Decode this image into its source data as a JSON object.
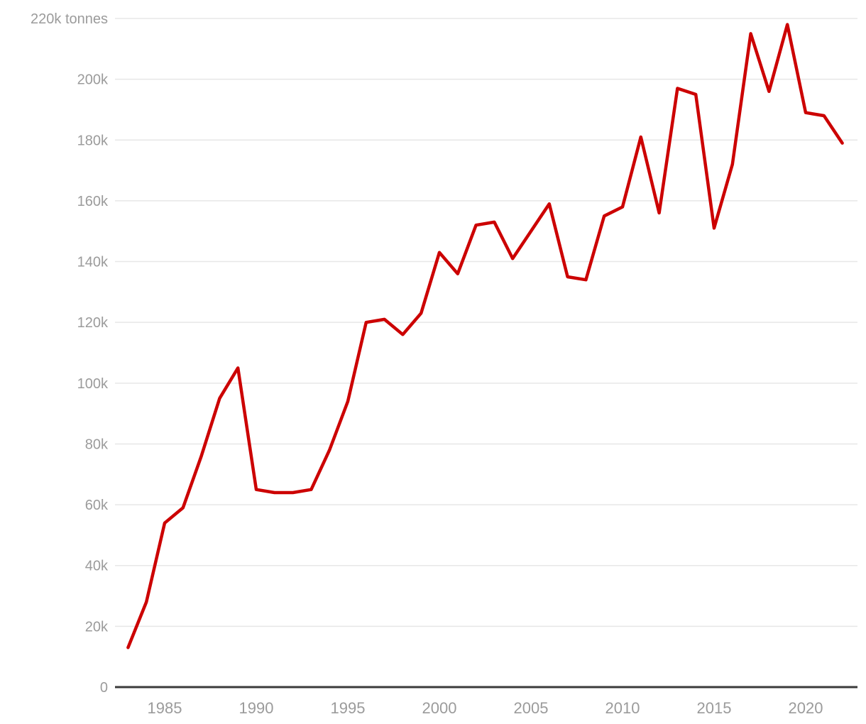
{
  "chart_data": {
    "type": "line",
    "title": "",
    "xlabel": "",
    "ylabel": "tonnes",
    "grid": true,
    "legend": "none",
    "ylim": [
      0,
      220000
    ],
    "xlim": [
      1983,
      2022
    ],
    "y_ticks": [
      {
        "value": 0,
        "label": "0"
      },
      {
        "value": 20000,
        "label": "20k"
      },
      {
        "value": 40000,
        "label": "40k"
      },
      {
        "value": 60000,
        "label": "60k"
      },
      {
        "value": 80000,
        "label": "80k"
      },
      {
        "value": 100000,
        "label": "100k"
      },
      {
        "value": 120000,
        "label": "120k"
      },
      {
        "value": 140000,
        "label": "140k"
      },
      {
        "value": 160000,
        "label": "160k"
      },
      {
        "value": 180000,
        "label": "180k"
      },
      {
        "value": 200000,
        "label": "200k"
      },
      {
        "value": 220000,
        "label": "220k tonnes"
      }
    ],
    "x_ticks": [
      {
        "value": 1985,
        "label": "1985"
      },
      {
        "value": 1990,
        "label": "1990"
      },
      {
        "value": 1995,
        "label": "1995"
      },
      {
        "value": 2000,
        "label": "2000"
      },
      {
        "value": 2005,
        "label": "2005"
      },
      {
        "value": 2010,
        "label": "2010"
      },
      {
        "value": 2015,
        "label": "2015"
      },
      {
        "value": 2020,
        "label": "2020"
      }
    ],
    "series": [
      {
        "name": "tonnes",
        "color": "#cc0000",
        "x": [
          1983,
          1984,
          1985,
          1986,
          1987,
          1988,
          1989,
          1990,
          1991,
          1992,
          1993,
          1994,
          1995,
          1996,
          1997,
          1998,
          1999,
          2000,
          2001,
          2002,
          2003,
          2004,
          2005,
          2006,
          2007,
          2008,
          2009,
          2010,
          2011,
          2012,
          2013,
          2014,
          2015,
          2016,
          2017,
          2018,
          2019,
          2020,
          2021,
          2022
        ],
        "values": [
          13000,
          28000,
          54000,
          59000,
          76000,
          95000,
          105000,
          65000,
          64000,
          64000,
          65000,
          78000,
          94000,
          120000,
          121000,
          116000,
          123000,
          143000,
          136000,
          152000,
          153000,
          141000,
          150000,
          159000,
          135000,
          134000,
          155000,
          158000,
          181000,
          156000,
          197000,
          195000,
          151000,
          172000,
          215000,
          196000,
          218000,
          189000,
          188000,
          179000
        ]
      }
    ],
    "colors": {
      "line": "#cc0000",
      "gridline": "#e7e7e7",
      "axis_line": "#3b3b3b",
      "tick_text": "#9b9b9b",
      "background": "#ffffff"
    }
  }
}
